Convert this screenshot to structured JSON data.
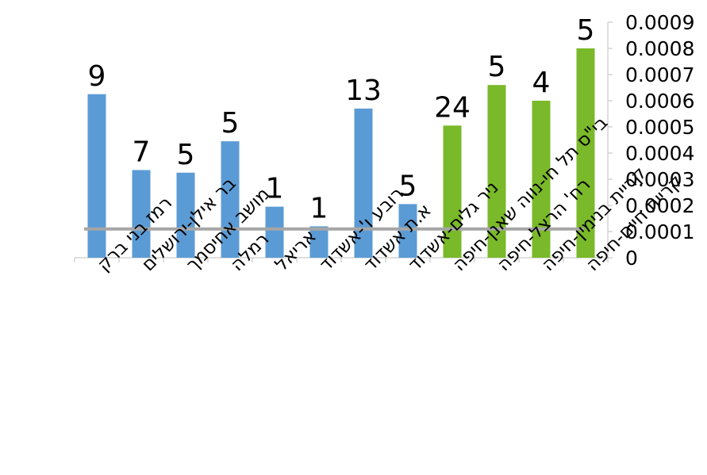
{
  "chart_data": {
    "type": "bar",
    "title": "",
    "xlabel": "",
    "ylabel": "",
    "categories": [
      "רמז בני ברק",
      "בר אילן-ירושלים",
      "מושב אחיסמך",
      "רמלה",
      "אריאל",
      "רובע ו'-אשדוד",
      "א.ת אשדוד",
      "ניר גלים-אשדוד",
      "בי\"ס תל חי-נווה שאנן-חיפה",
      "רח' הרצל-חיפה",
      "קריית בנימין-חיפה",
      "קריית חיים-חיפה"
    ],
    "values": [
      0.000625,
      0.000335,
      0.000325,
      0.000445,
      0.000195,
      0.00012,
      0.00057,
      0.000205,
      0.000505,
      0.00066,
      0.0006,
      0.0008
    ],
    "data_labels": [
      "9",
      "7",
      "5",
      "5",
      "1",
      "1",
      "13",
      "5",
      "24",
      "5",
      "4",
      "5"
    ],
    "bar_colors": [
      "#5b9bd5",
      "#5b9bd5",
      "#5b9bd5",
      "#5b9bd5",
      "#5b9bd5",
      "#5b9bd5",
      "#5b9bd5",
      "#5b9bd5",
      "#7ab929",
      "#7ab929",
      "#7ab929",
      "#7ab929"
    ],
    "reference_line": {
      "value": 0.00011,
      "color": "#a6a6a6"
    },
    "y_axis_position": "right",
    "ylim": [
      0,
      0.0009
    ],
    "yticks": [
      "0",
      "0.0001",
      "0.0002",
      "0.0003",
      "0.0004",
      "0.0005",
      "0.0006",
      "0.0007",
      "0.0008",
      "0.0009"
    ],
    "grid": false,
    "legend": "none"
  }
}
